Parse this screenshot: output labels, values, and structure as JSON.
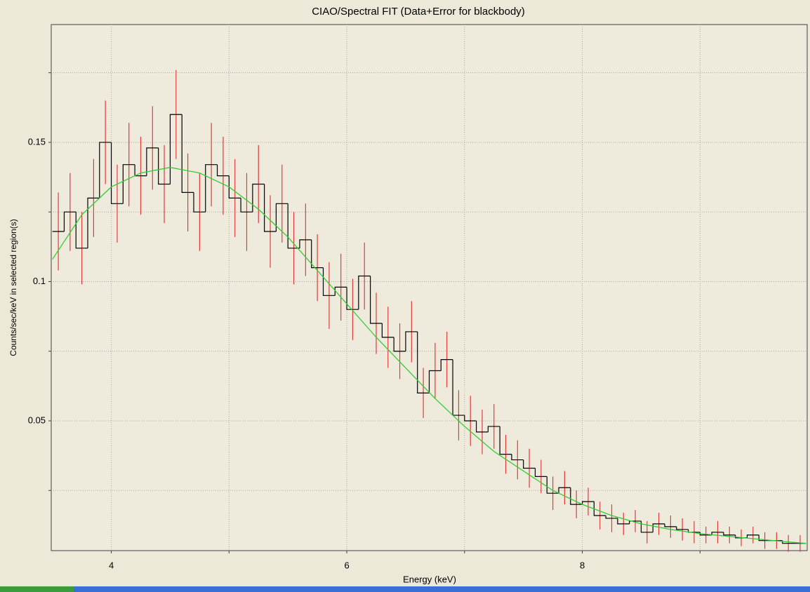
{
  "chart_data": {
    "type": "histogram",
    "title": "CIAO/Spectral FIT (Data+Error for blackbody)",
    "xlabel": "Energy (keV)",
    "ylabel": "Counts/sec/keV in selected region(s)",
    "xlim": [
      3.49,
      9.91
    ],
    "ylim": [
      0.0034,
      0.1923
    ],
    "xticks": [
      4,
      6,
      8
    ],
    "xminor": [
      5,
      7,
      9
    ],
    "yticks": [
      0.05,
      0.1,
      0.15
    ],
    "yminor": [
      0.025,
      0.075,
      0.125,
      0.175
    ],
    "grid": true,
    "color": "#000000",
    "error_color": "#e03c3c",
    "bins": [
      3.5,
      3.6,
      3.7,
      3.8,
      3.9,
      4.0,
      4.1,
      4.2,
      4.3,
      4.4,
      4.5,
      4.6,
      4.7,
      4.8,
      4.9,
      5.0,
      5.1,
      5.2,
      5.3,
      5.4,
      5.5,
      5.6,
      5.7,
      5.8,
      5.9,
      6.0,
      6.1,
      6.2,
      6.3,
      6.4,
      6.5,
      6.6,
      6.7,
      6.8,
      6.9,
      7.0,
      7.1,
      7.2,
      7.3,
      7.4,
      7.5,
      7.6,
      7.7,
      7.8,
      7.9,
      8.0,
      8.1,
      8.2,
      8.3,
      8.4,
      8.5,
      8.6,
      8.7,
      8.8,
      8.9,
      9.0,
      9.1,
      9.2,
      9.3,
      9.4,
      9.5,
      9.6,
      9.7,
      9.8,
      9.9
    ],
    "values": [
      0.118,
      0.125,
      0.112,
      0.13,
      0.15,
      0.128,
      0.142,
      0.138,
      0.148,
      0.135,
      0.16,
      0.132,
      0.125,
      0.142,
      0.138,
      0.13,
      0.125,
      0.135,
      0.118,
      0.128,
      0.112,
      0.115,
      0.105,
      0.095,
      0.098,
      0.09,
      0.102,
      0.085,
      0.08,
      0.075,
      0.082,
      0.06,
      0.068,
      0.072,
      0.052,
      0.05,
      0.046,
      0.048,
      0.038,
      0.036,
      0.033,
      0.03,
      0.024,
      0.026,
      0.02,
      0.021,
      0.016,
      0.015,
      0.013,
      0.014,
      0.01,
      0.013,
      0.012,
      0.011,
      0.01,
      0.009,
      0.01,
      0.009,
      0.008,
      0.009,
      0.007,
      0.007,
      0.006,
      0.006
    ],
    "errors": [
      0.014,
      0.014,
      0.013,
      0.014,
      0.015,
      0.014,
      0.015,
      0.014,
      0.015,
      0.014,
      0.016,
      0.014,
      0.014,
      0.015,
      0.014,
      0.014,
      0.014,
      0.014,
      0.013,
      0.014,
      0.013,
      0.013,
      0.012,
      0.012,
      0.012,
      0.011,
      0.012,
      0.011,
      0.011,
      0.01,
      0.011,
      0.009,
      0.01,
      0.01,
      0.009,
      0.009,
      0.008,
      0.008,
      0.007,
      0.007,
      0.007,
      0.006,
      0.006,
      0.006,
      0.005,
      0.005,
      0.005,
      0.005,
      0.004,
      0.004,
      0.004,
      0.004,
      0.004,
      0.004,
      0.004,
      0.003,
      0.004,
      0.003,
      0.003,
      0.003,
      0.003,
      0.003,
      0.003,
      0.003
    ],
    "model": {
      "color": "#33cc33",
      "x": [
        3.5,
        3.75,
        4.0,
        4.25,
        4.5,
        4.75,
        5.0,
        5.25,
        5.5,
        5.75,
        6.0,
        6.25,
        6.5,
        6.75,
        7.0,
        7.25,
        7.5,
        7.75,
        8.0,
        8.25,
        8.5,
        8.75,
        9.0,
        9.25,
        9.5,
        9.75,
        9.9
      ],
      "values": [
        0.108,
        0.124,
        0.134,
        0.139,
        0.141,
        0.139,
        0.134,
        0.126,
        0.116,
        0.104,
        0.092,
        0.08,
        0.069,
        0.058,
        0.048,
        0.039,
        0.032,
        0.025,
        0.02,
        0.016,
        0.013,
        0.011,
        0.0095,
        0.0085,
        0.0075,
        0.0065,
        0.006
      ]
    }
  }
}
